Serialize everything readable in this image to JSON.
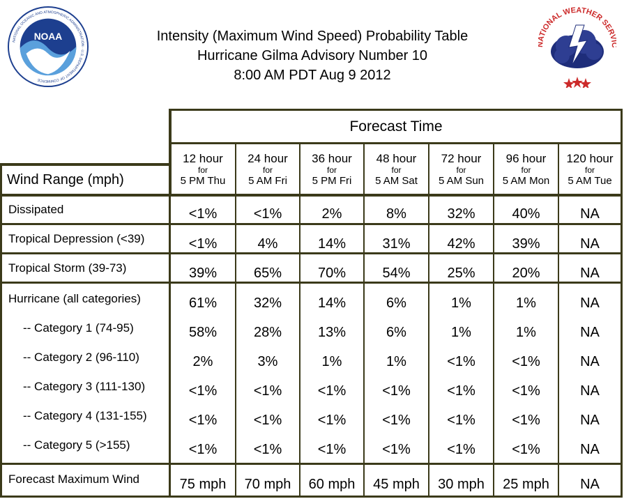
{
  "header": {
    "line1": "Intensity (Maximum Wind Speed) Probability Table",
    "line2": "Hurricane Gilma Advisory Number 10",
    "line3": "8:00 AM PDT Aug 9 2012"
  },
  "logos": {
    "noaa_text": "NOAA",
    "noaa_ring": "NATIONAL OCEANIC AND ATMOSPHERIC ADMINISTRATION · U.S. DEPARTMENT OF COMMERCE",
    "nws_ring": "NATIONAL WEATHER SERVICE"
  },
  "table": {
    "forecast_time_label": "Forecast Time",
    "wind_range_label": "Wind Range (mph)",
    "columns": [
      {
        "hour": "12 hour",
        "for": "for",
        "when": "5 PM Thu"
      },
      {
        "hour": "24 hour",
        "for": "for",
        "when": "5 AM Fri"
      },
      {
        "hour": "36 hour",
        "for": "for",
        "when": "5 PM Fri"
      },
      {
        "hour": "48 hour",
        "for": "for",
        "when": "5 AM Sat"
      },
      {
        "hour": "72 hour",
        "for": "for",
        "when": "5 AM Sun"
      },
      {
        "hour": "96 hour",
        "for": "for",
        "when": "5 AM Mon"
      },
      {
        "hour": "120 hour",
        "for": "for",
        "when": "5 AM Tue"
      }
    ],
    "rows": [
      {
        "label": "Dissipated",
        "values": [
          "<1%",
          "<1%",
          "2%",
          "8%",
          "32%",
          "40%",
          "NA"
        ]
      },
      {
        "label": "Tropical Depression (<39)",
        "values": [
          "<1%",
          "4%",
          "14%",
          "31%",
          "42%",
          "39%",
          "NA"
        ]
      },
      {
        "label": "Tropical Storm (39-73)",
        "values": [
          "39%",
          "65%",
          "70%",
          "54%",
          "25%",
          "20%",
          "NA"
        ]
      },
      {
        "label": "Hurricane (all categories)",
        "values": [
          "61%",
          "32%",
          "14%",
          "6%",
          "1%",
          "1%",
          "NA"
        ]
      },
      {
        "label": "-- Category 1 (74-95)",
        "values": [
          "58%",
          "28%",
          "13%",
          "6%",
          "1%",
          "1%",
          "NA"
        ]
      },
      {
        "label": "-- Category 2 (96-110)",
        "values": [
          "2%",
          "3%",
          "1%",
          "1%",
          "<1%",
          "<1%",
          "NA"
        ]
      },
      {
        "label": "-- Category 3 (111-130)",
        "values": [
          "<1%",
          "<1%",
          "<1%",
          "<1%",
          "<1%",
          "<1%",
          "NA"
        ]
      },
      {
        "label": "-- Category 4 (131-155)",
        "values": [
          "<1%",
          "<1%",
          "<1%",
          "<1%",
          "<1%",
          "<1%",
          "NA"
        ]
      },
      {
        "label": "-- Category 5 (>155)",
        "values": [
          "<1%",
          "<1%",
          "<1%",
          "<1%",
          "<1%",
          "<1%",
          "NA"
        ]
      },
      {
        "label": "Forecast Maximum Wind",
        "values": [
          "75 mph",
          "70 mph",
          "60 mph",
          "45 mph",
          "30 mph",
          "25 mph",
          "NA"
        ]
      }
    ]
  },
  "colors": {
    "border": "#3b3a1a",
    "noaa_blue": "#1d3f8f",
    "noaa_light": "#5aa0dc",
    "nws_red": "#cc2a2a",
    "nws_cloud": "#1e2d7a"
  }
}
